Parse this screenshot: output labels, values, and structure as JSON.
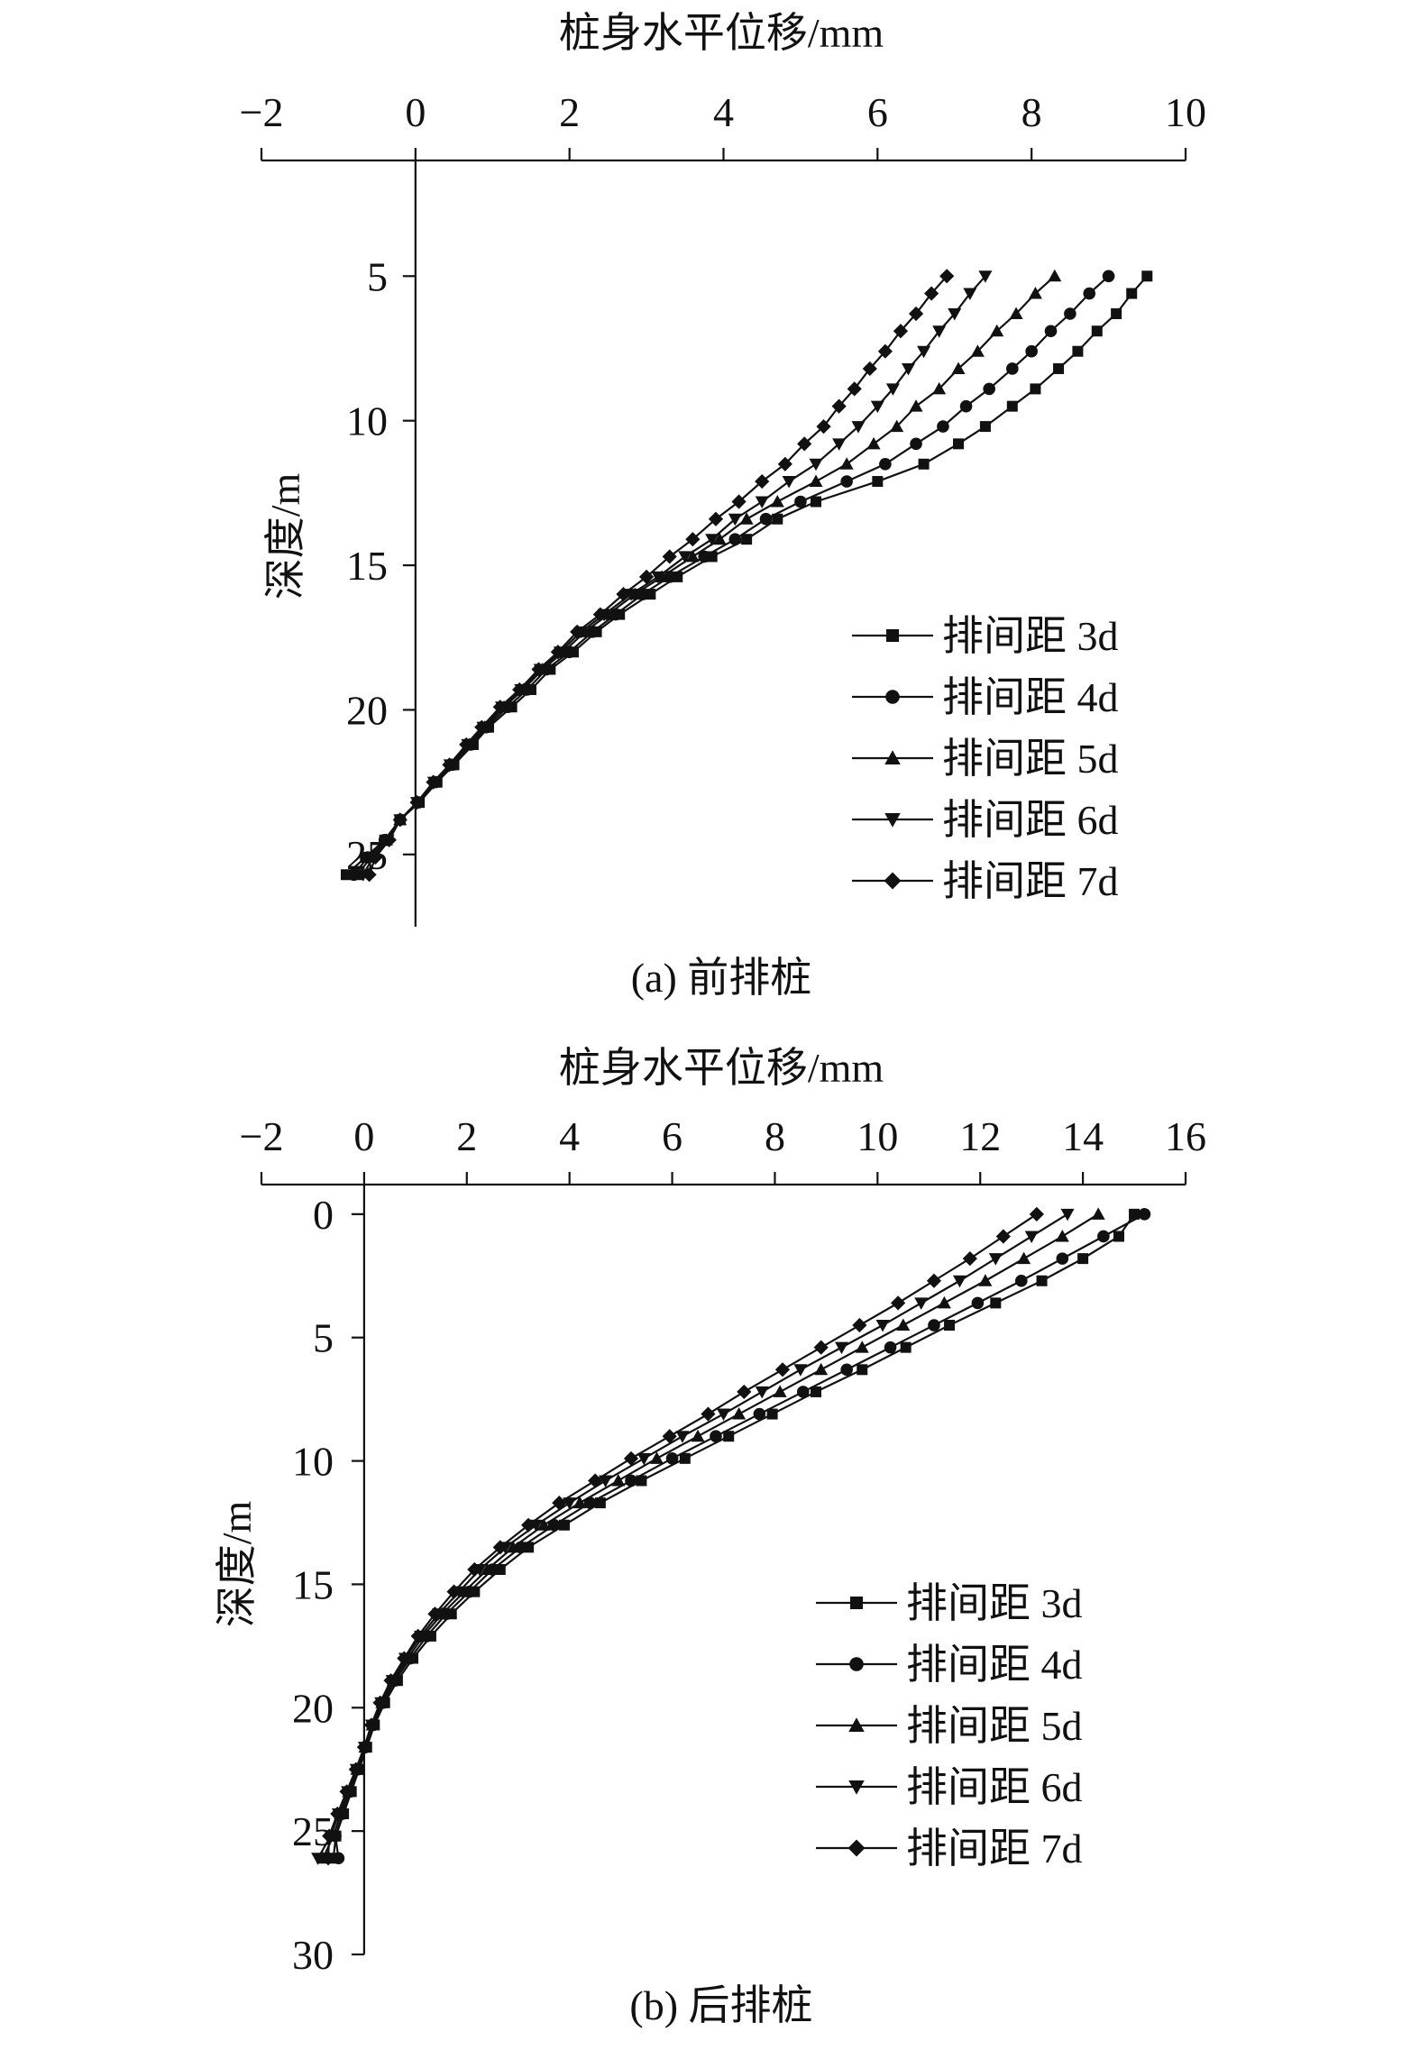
{
  "chart_data": [
    {
      "type": "line",
      "title": "",
      "xlabel": "桩身水平位移/mm",
      "ylabel": "深度/m",
      "caption": "(a) 前排桩",
      "x_ticks": [
        "−2",
        "0",
        "2",
        "4",
        "6",
        "8",
        "10"
      ],
      "y_ticks": [
        "5",
        "10",
        "15",
        "20",
        "25"
      ],
      "xlim": [
        -2,
        10
      ],
      "ylim": [
        1,
        27.5
      ],
      "y_inverted": true,
      "x_axis_position": "top",
      "grid": false,
      "legend": {
        "placement": "bottom-right"
      },
      "depth": [
        5,
        5.6,
        6.3,
        6.9,
        7.6,
        8.2,
        8.9,
        9.5,
        10.2,
        10.8,
        11.5,
        12.1,
        12.8,
        13.4,
        14.1,
        14.7,
        15.4,
        16,
        16.7,
        17.3,
        18,
        18.6,
        19.3,
        19.9,
        20.6,
        21.2,
        21.9,
        22.5,
        23.2,
        23.8,
        24.5,
        25.1,
        25.7
      ],
      "series": [
        {
          "name": "排间距 3d",
          "marker": "square",
          "values": [
            9.5,
            9.3,
            9.1,
            8.85,
            8.6,
            8.35,
            8.05,
            7.75,
            7.4,
            7.05,
            6.6,
            6.0,
            5.2,
            4.7,
            4.3,
            3.85,
            3.4,
            3.05,
            2.65,
            2.35,
            2.05,
            1.75,
            1.5,
            1.25,
            0.95,
            0.75,
            0.5,
            0.28,
            0.05,
            -0.2,
            -0.4,
            -0.65,
            -0.9
          ]
        },
        {
          "name": "排间距 4d",
          "marker": "circle",
          "values": [
            9.0,
            8.75,
            8.5,
            8.25,
            8.0,
            7.75,
            7.45,
            7.15,
            6.85,
            6.5,
            6.1,
            5.6,
            5.0,
            4.55,
            4.15,
            3.75,
            3.3,
            2.95,
            2.6,
            2.3,
            2.0,
            1.7,
            1.45,
            1.2,
            0.92,
            0.72,
            0.48,
            0.26,
            0.04,
            -0.2,
            -0.4,
            -0.62,
            -0.8
          ]
        },
        {
          "name": "排间距 5d",
          "marker": "triangle-up",
          "values": [
            8.3,
            8.05,
            7.8,
            7.55,
            7.3,
            7.05,
            6.8,
            6.5,
            6.25,
            5.95,
            5.6,
            5.2,
            4.7,
            4.3,
            3.95,
            3.6,
            3.2,
            2.85,
            2.5,
            2.2,
            1.92,
            1.65,
            1.4,
            1.15,
            0.9,
            0.7,
            0.46,
            0.25,
            0.03,
            -0.2,
            -0.38,
            -0.58,
            -0.75
          ]
        },
        {
          "name": "排间距 6d",
          "marker": "triangle-down",
          "values": [
            7.4,
            7.2,
            7.0,
            6.8,
            6.6,
            6.4,
            6.2,
            6.0,
            5.75,
            5.5,
            5.2,
            4.85,
            4.5,
            4.15,
            3.85,
            3.5,
            3.15,
            2.8,
            2.45,
            2.15,
            1.88,
            1.62,
            1.37,
            1.12,
            0.88,
            0.68,
            0.45,
            0.24,
            0.02,
            -0.2,
            -0.36,
            -0.55,
            -0.68
          ]
        },
        {
          "name": "排间距 7d",
          "marker": "diamond",
          "values": [
            6.9,
            6.7,
            6.5,
            6.3,
            6.1,
            5.9,
            5.7,
            5.5,
            5.3,
            5.05,
            4.8,
            4.5,
            4.2,
            3.9,
            3.6,
            3.3,
            3.0,
            2.7,
            2.4,
            2.1,
            1.85,
            1.6,
            1.35,
            1.1,
            0.86,
            0.66,
            0.44,
            0.23,
            0.02,
            -0.2,
            -0.34,
            -0.52,
            -0.6
          ]
        }
      ]
    },
    {
      "type": "line",
      "title": "",
      "xlabel": "桩身水平位移/mm",
      "ylabel": "深度/m",
      "caption": "(b) 后排桩",
      "x_ticks": [
        "−2",
        "0",
        "2",
        "4",
        "6",
        "8",
        "10",
        "12",
        "14",
        "16"
      ],
      "y_ticks": [
        "0",
        "5",
        "10",
        "15",
        "20",
        "25",
        "30"
      ],
      "xlim": [
        -2,
        16
      ],
      "ylim": [
        -1.2,
        30
      ],
      "y_inverted": true,
      "x_axis_position": "top",
      "grid": false,
      "legend": {
        "placement": "bottom-right"
      },
      "depth": [
        0,
        0.9,
        1.8,
        2.7,
        3.6,
        4.5,
        5.4,
        6.3,
        7.2,
        8.1,
        9.0,
        9.9,
        10.8,
        11.7,
        12.6,
        13.5,
        14.4,
        15.3,
        16.2,
        17.1,
        18.0,
        18.9,
        19.8,
        20.7,
        21.6,
        22.5,
        23.4,
        24.3,
        25.2,
        26.1
      ],
      "series": [
        {
          "name": "排间距 3d",
          "marker": "square",
          "values": [
            15.0,
            14.7,
            14.0,
            13.2,
            12.3,
            11.4,
            10.55,
            9.7,
            8.8,
            7.95,
            7.1,
            6.25,
            5.4,
            4.6,
            3.9,
            3.2,
            2.65,
            2.15,
            1.7,
            1.3,
            0.95,
            0.65,
            0.4,
            0.2,
            0.05,
            -0.1,
            -0.25,
            -0.4,
            -0.55,
            -0.6
          ]
        },
        {
          "name": "排间距 4d",
          "marker": "circle",
          "values": [
            15.2,
            14.4,
            13.6,
            12.8,
            11.95,
            11.1,
            10.25,
            9.4,
            8.55,
            7.7,
            6.85,
            6.0,
            5.2,
            4.4,
            3.7,
            3.05,
            2.5,
            2.05,
            1.6,
            1.22,
            0.9,
            0.6,
            0.37,
            0.18,
            0.03,
            -0.12,
            -0.27,
            -0.42,
            -0.56,
            -0.5
          ]
        },
        {
          "name": "排间距 5d",
          "marker": "triangle-up",
          "values": [
            14.3,
            13.6,
            12.85,
            12.1,
            11.3,
            10.5,
            9.7,
            8.9,
            8.1,
            7.3,
            6.5,
            5.7,
            4.95,
            4.2,
            3.5,
            2.9,
            2.4,
            1.95,
            1.52,
            1.15,
            0.85,
            0.57,
            0.35,
            0.16,
            0.02,
            -0.14,
            -0.3,
            -0.46,
            -0.6,
            -0.8
          ]
        },
        {
          "name": "排间距 6d",
          "marker": "triangle-down",
          "values": [
            13.7,
            13.0,
            12.3,
            11.6,
            10.85,
            10.1,
            9.3,
            8.5,
            7.75,
            7.0,
            6.2,
            5.45,
            4.7,
            4.0,
            3.35,
            2.75,
            2.25,
            1.85,
            1.45,
            1.1,
            0.8,
            0.55,
            0.33,
            0.15,
            0.01,
            -0.15,
            -0.32,
            -0.5,
            -0.65,
            -0.9
          ]
        },
        {
          "name": "排间距 7d",
          "marker": "diamond",
          "values": [
            13.1,
            12.45,
            11.8,
            11.1,
            10.4,
            9.65,
            8.9,
            8.15,
            7.4,
            6.7,
            5.95,
            5.2,
            4.5,
            3.8,
            3.2,
            2.65,
            2.15,
            1.75,
            1.38,
            1.05,
            0.78,
            0.52,
            0.31,
            0.14,
            0.0,
            -0.16,
            -0.34,
            -0.52,
            -0.68,
            -0.7
          ]
        }
      ]
    }
  ]
}
